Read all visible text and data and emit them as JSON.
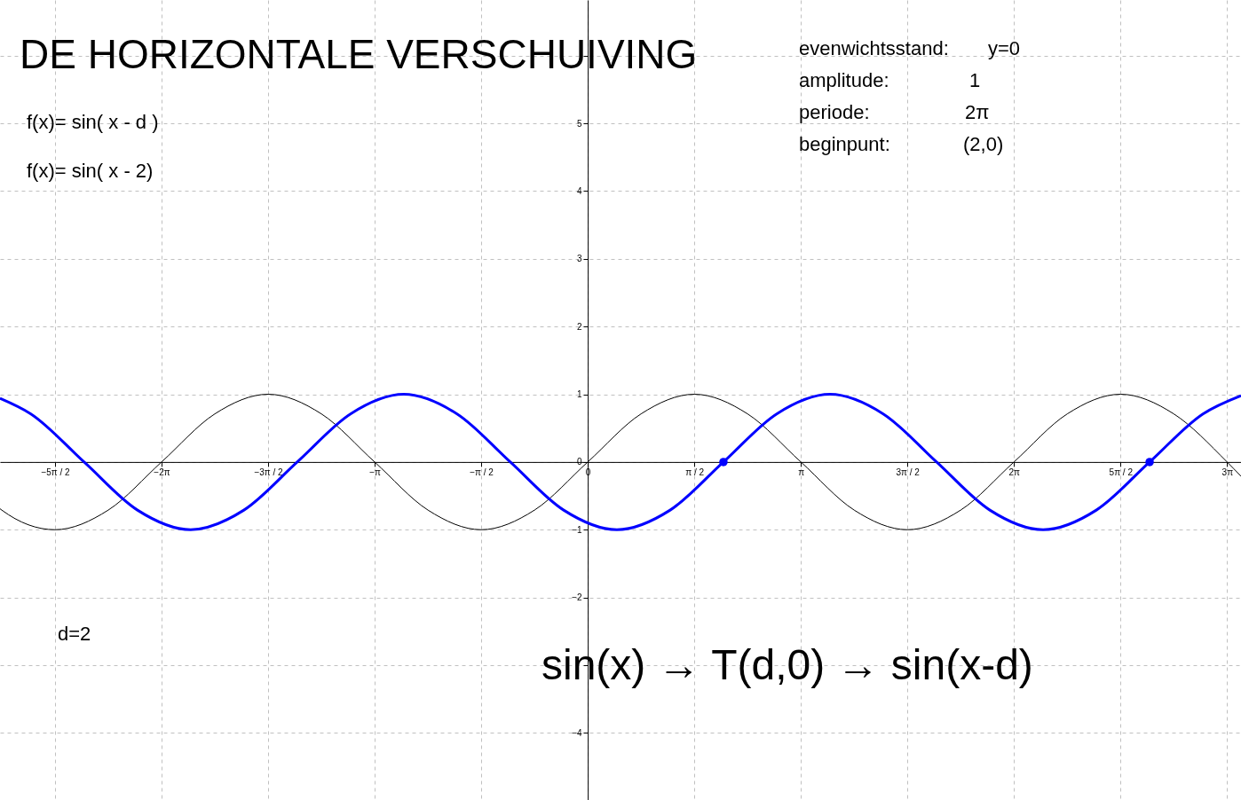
{
  "chart_data": {
    "type": "line",
    "title": "DE HORIZONTALE VERSCHUIVING",
    "xlim": [
      -8.665,
      9.63
    ],
    "ylim": [
      -4.99,
      6.82
    ],
    "xticks": [
      {
        "value": -7.854,
        "label": "−5π / 2"
      },
      {
        "value": -6.283,
        "label": "−2π"
      },
      {
        "value": -4.712,
        "label": "−3π / 2"
      },
      {
        "value": -3.142,
        "label": "−π"
      },
      {
        "value": -1.571,
        "label": "−π / 2"
      },
      0,
      {
        "value": 1.571,
        "label": "π / 2"
      },
      {
        "value": 3.142,
        "label": "π"
      },
      {
        "value": 4.712,
        "label": "3π / 2"
      },
      {
        "value": 6.283,
        "label": "2π"
      },
      {
        "value": 7.854,
        "label": "5π / 2"
      },
      {
        "value": 9.425,
        "label": "3π"
      }
    ],
    "yticks": [
      {
        "value": -4,
        "label": "−4"
      },
      {
        "value": -3,
        "label": null
      },
      {
        "value": -2,
        "label": "−2"
      },
      {
        "value": -1,
        "label": "−1"
      },
      0,
      1,
      2,
      3,
      4,
      5,
      {
        "value": 6,
        "label": null
      }
    ],
    "grid": true,
    "series": [
      {
        "color": "#000000",
        "x": [
          -8.665,
          -8.639,
          -7.854,
          -7.069,
          -6.283,
          -5.498,
          -4.712,
          -3.927,
          -3.142,
          -2.356,
          -1.571,
          -0.785,
          0,
          0.785,
          1.571,
          2.356,
          3.142,
          3.927,
          4.712,
          5.498,
          6.283,
          7.069,
          7.854,
          8.639,
          9.425,
          9.63
        ],
        "values": [
          -0.69,
          -0.71,
          -1,
          -0.71,
          0,
          0.71,
          1,
          0.71,
          0,
          -0.71,
          -1,
          -0.71,
          0,
          0.71,
          1,
          0.71,
          0,
          -0.71,
          -1,
          -0.71,
          0,
          0.71,
          1,
          0.71,
          0,
          -0.21
        ]
      },
      {
        "color": "#0000ff",
        "x": [
          -8.665,
          -8.21,
          -7.425,
          -6.639,
          -5.854,
          -5.069,
          -4.283,
          -3.498,
          -2.712,
          -1.927,
          -1.142,
          -0.356,
          0.429,
          1.215,
          2,
          2.785,
          3.571,
          4.356,
          5.142,
          5.927,
          6.712,
          7.498,
          8.283,
          9.069,
          9.63
        ],
        "values": [
          0.94,
          0.71,
          0,
          -0.71,
          -1,
          -0.71,
          0,
          0.71,
          1,
          0.71,
          0,
          -0.71,
          -1,
          -0.71,
          0,
          0.71,
          1,
          0.71,
          0,
          -0.71,
          -1,
          -0.71,
          0,
          0.71,
          0.98
        ]
      },
      {
        "type": "scatter",
        "color": "#0000ff",
        "x": [
          2,
          8.283
        ],
        "values": [
          0,
          0
        ]
      }
    ],
    "annotations": [
      "f(x)= sin( x - d )",
      "f(x)= sin( x - 2)",
      "evenwichtsstand:",
      "y=0",
      "amplitude:",
      "1",
      "periode:",
      "2π",
      "beginpunt:",
      "(2,0)",
      "d=2",
      "sin(x) → T(d,0) → sin(x-d)"
    ]
  }
}
